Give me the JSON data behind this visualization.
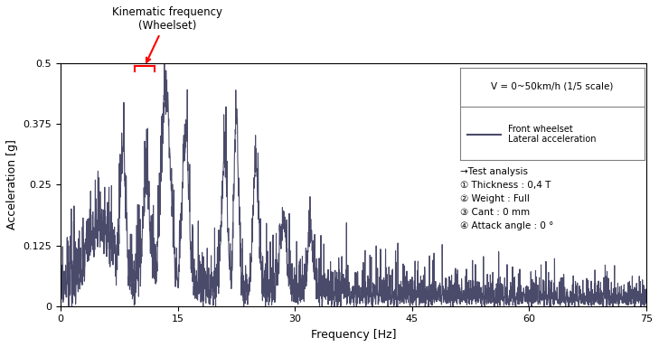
{
  "title": "",
  "xlabel": "Frequency [Hz]",
  "ylabel": "Acceleration [g]",
  "xlim": [
    0,
    75
  ],
  "ylim": [
    0,
    0.5
  ],
  "xticks": [
    0,
    15,
    30,
    45,
    60,
    75
  ],
  "yticks": [
    0,
    0.125,
    0.25,
    0.375,
    0.5
  ],
  "ytick_labels": [
    "0",
    "0.125",
    "0.25",
    "0.375",
    "0.5"
  ],
  "line_color": "#4a4a6a",
  "line_width": 0.8,
  "annotation_text": "Kinematic frequency\n(Wheelset)",
  "legend_title": "V = 0~50km/h (1/5 scale)",
  "legend_line_label": "Front wheelset\nLateral acceleration",
  "info_text": "→Test analysis\n① Thickness : 0,4 T\n② Weight : Full\n③ Cant : 0 mm\n④ Attack angle : 0 °",
  "background_color": "#ffffff",
  "seed": 42
}
